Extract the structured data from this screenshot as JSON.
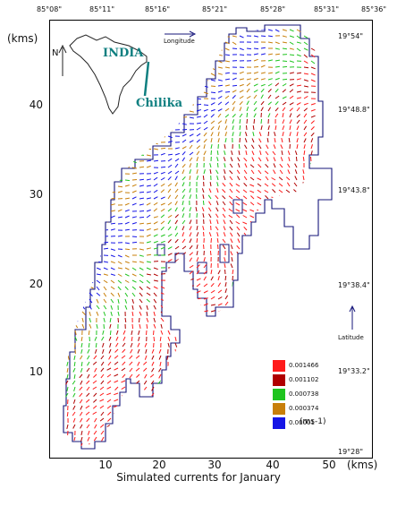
{
  "map": {
    "y_unit": "(kms)",
    "x_unit": "(kms)",
    "caption": "Simulated currents for January",
    "top_longitudes": [
      "85°08\"",
      "85°11\"",
      "85°16\"",
      "85°21\"",
      "85°28\"",
      "85°31\"",
      "85°36\""
    ],
    "right_latitudes": [
      "19°54\"",
      "19°48.8\"",
      "19°43.8\"",
      "19°38.4\"",
      "19°33.2\"",
      "19°28\""
    ],
    "y_ticks": [
      "40",
      "30",
      "20",
      "10"
    ],
    "x_ticks": [
      "10",
      "20",
      "30",
      "40",
      "50"
    ],
    "inset": {
      "country": "INDIA",
      "lake": "Chilika",
      "north": "N"
    },
    "direction_labels": {
      "longitude": "Longitude",
      "latitude": "Latitude"
    },
    "legend": {
      "units": "(ms-1)",
      "items": [
        {
          "label": "0.001466",
          "color": "#ff1a1a"
        },
        {
          "label": "0.001102",
          "color": "#b00000"
        },
        {
          "label": "0.000738",
          "color": "#1fc41f"
        },
        {
          "label": "0.000374",
          "color": "#c87f0a"
        },
        {
          "label": "0.00001",
          "color": "#1515e6"
        }
      ]
    }
  }
}
